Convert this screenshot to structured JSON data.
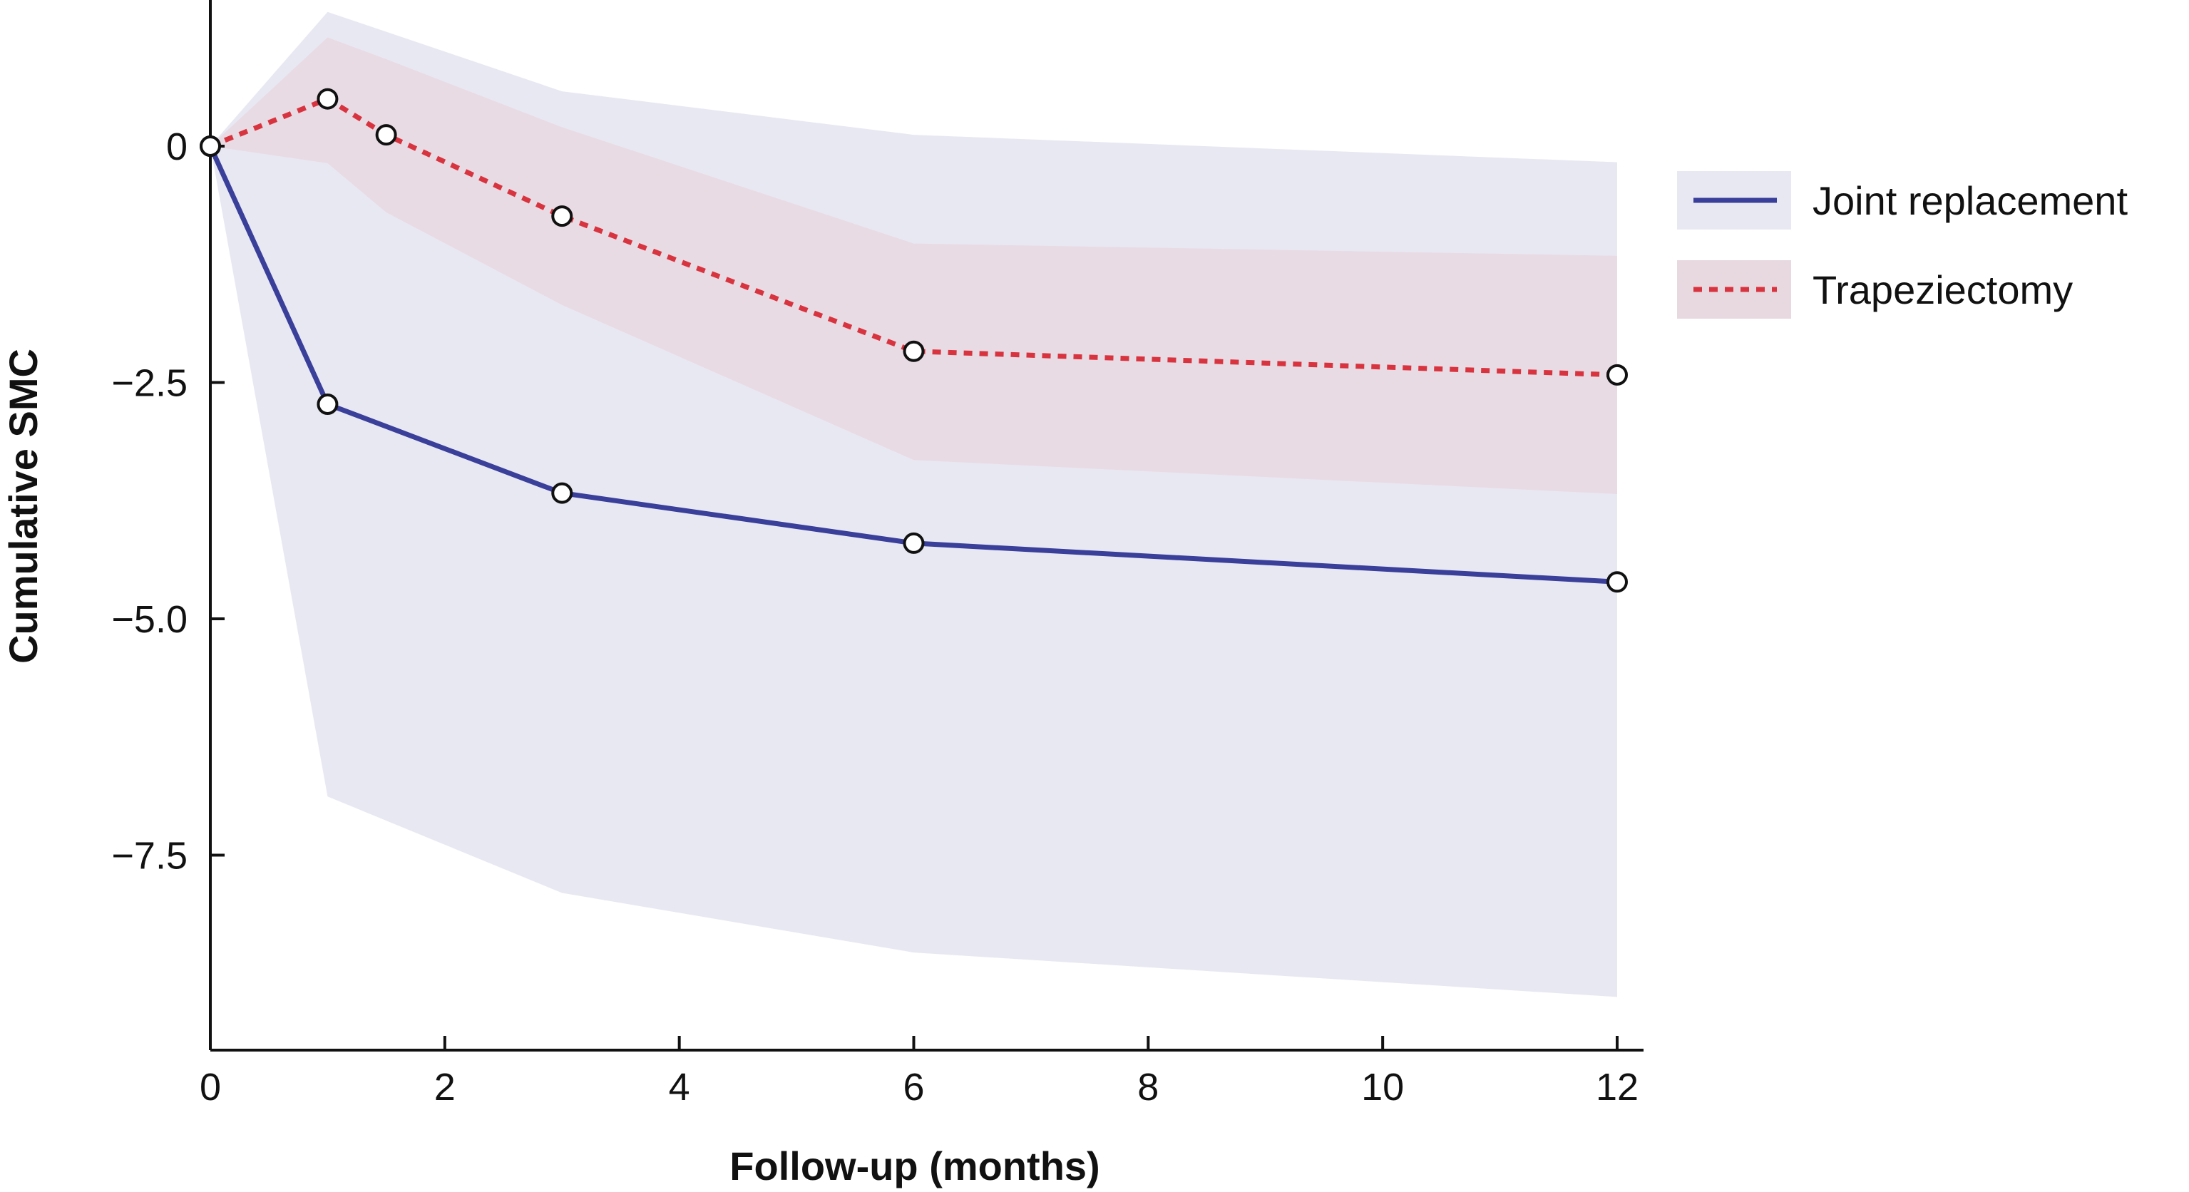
{
  "chart_data": {
    "type": "line",
    "title": "",
    "xlabel": "Follow-up (months)",
    "ylabel": "Cumulative SMC",
    "xlim": [
      0,
      12.2
    ],
    "ylim": [
      -9.7,
      1.6
    ],
    "x_ticks": [
      0,
      2,
      4,
      6,
      8,
      10,
      12
    ],
    "x_tick_labels": [
      "0",
      "2",
      "4",
      "6",
      "8",
      "10",
      "12"
    ],
    "y_ticks": [
      0,
      -2.5,
      -5.0,
      -7.5
    ],
    "y_tick_labels": [
      "0",
      "−2.5",
      "−5.0",
      "−7.5"
    ],
    "grid": false,
    "legend_position": "right",
    "series": [
      {
        "name": "Joint replacement",
        "color": "#3a3f9a",
        "band_color": "#e8e8f3",
        "line_style": "solid",
        "x": [
          0,
          1,
          3,
          6,
          12
        ],
        "y": [
          0,
          -2.73,
          -3.67,
          -4.2,
          -4.61
        ],
        "band_x": [
          0,
          1,
          3,
          6,
          12
        ],
        "band_upper": [
          0,
          1.42,
          0.58,
          0.12,
          -0.17
        ],
        "band_lower": [
          0,
          -6.88,
          -7.9,
          -8.53,
          -9.0
        ]
      },
      {
        "name": "Trapeziectomy",
        "color": "#d8343f",
        "band_color": "#e8d8e0",
        "line_style": "dotted",
        "x": [
          0,
          1,
          1.5,
          3,
          6,
          12
        ],
        "y": [
          0,
          0.5,
          0.12,
          -0.74,
          -2.17,
          -2.42
        ],
        "band_x": [
          0,
          1,
          1.5,
          3,
          6,
          12
        ],
        "band_upper": [
          0,
          1.15,
          0.92,
          0.2,
          -1.03,
          -1.16
        ],
        "band_lower": [
          0,
          -0.18,
          -0.7,
          -1.68,
          -3.32,
          -3.68
        ]
      }
    ]
  }
}
